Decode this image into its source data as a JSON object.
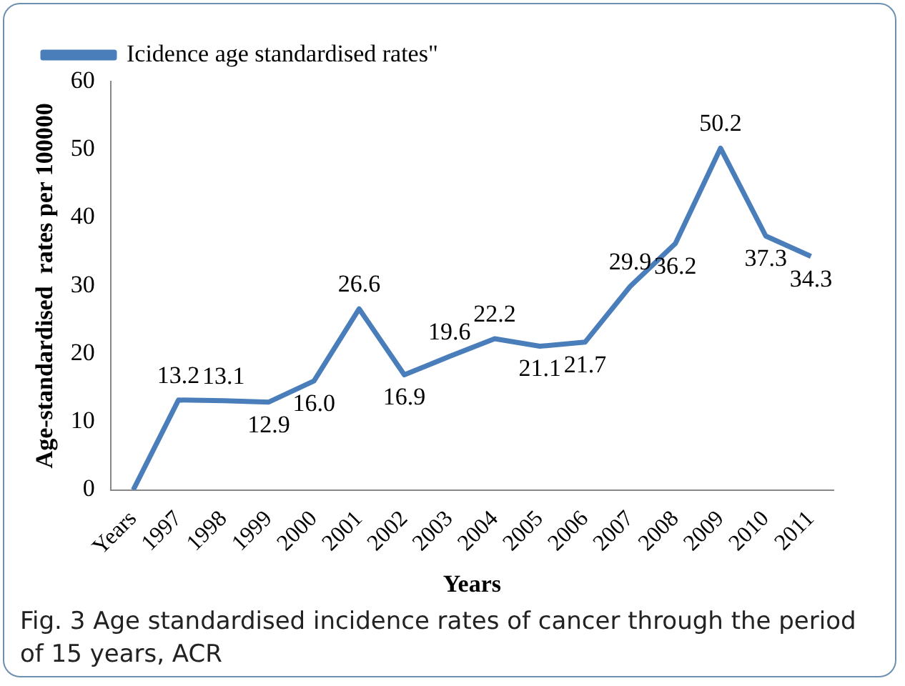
{
  "chart_data": {
    "type": "line",
    "xlabel": "Years",
    "ylabel": "Age-standardised  rates per 100000",
    "categories": [
      "Years",
      "1997",
      "1998",
      "1999",
      "2000",
      "2001",
      "2002",
      "2003",
      "2004",
      "2005",
      "2006",
      "2007",
      "2008",
      "2009",
      "2010",
      "2011"
    ],
    "series": [
      {
        "name": "Icidence age standardised rates\"",
        "color": "#4a7ebb",
        "values": [
          0,
          13.2,
          13.1,
          12.9,
          16.0,
          26.6,
          16.9,
          19.6,
          22.2,
          21.1,
          21.7,
          29.9,
          36.2,
          50.2,
          37.3,
          34.3
        ],
        "value_labels": [
          null,
          "13.2",
          "13.1",
          "12.9",
          "16.0",
          "26.6",
          "16.9",
          "19.6",
          "22.2",
          "21.1",
          "21.7",
          "29.9",
          "36.2",
          "50.2",
          "37.3",
          "34.3"
        ]
      }
    ],
    "ylim": [
      0,
      60
    ],
    "yticks": [
      0,
      10,
      20,
      30,
      40,
      50,
      60
    ],
    "grid": false,
    "legend": "top left",
    "marker": "none",
    "line_style": "solid",
    "annotations": [
      "Fig. 3 Age standardised incidence rates of cancer through the period of 15 years, ACR"
    ]
  }
}
